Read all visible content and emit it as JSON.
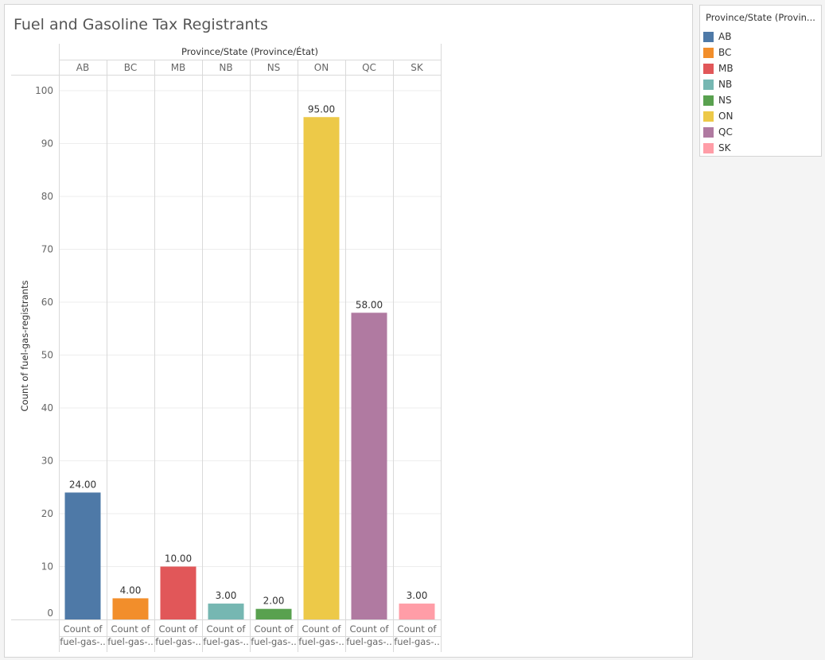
{
  "chart_data": {
    "type": "bar",
    "title": "Fuel and Gasoline Tax Registrants",
    "column_header": "Province/State (Province/État)",
    "ylabel": "Count of fuel-gas-registrants",
    "ylim": [
      0,
      100
    ],
    "yticks": [
      0,
      10,
      20,
      30,
      40,
      50,
      60,
      70,
      80,
      90,
      100
    ],
    "categories": [
      "AB",
      "BC",
      "MB",
      "NB",
      "NS",
      "ON",
      "QC",
      "SK"
    ],
    "values": [
      24,
      4,
      10,
      3,
      2,
      95,
      58,
      3
    ],
    "value_labels": [
      "24.00",
      "4.00",
      "10.00",
      "3.00",
      "2.00",
      "95.00",
      "58.00",
      "3.00"
    ],
    "colors": [
      "#4e79a7",
      "#f28e2b",
      "#e15759",
      "#76b7b2",
      "#59a14f",
      "#edc948",
      "#b07aa1",
      "#ff9da7"
    ],
    "bottom_label_line1": "Count of",
    "bottom_label_line2": "fuel-gas-..",
    "grid": true
  },
  "legend": {
    "title": "Province/State (Provin...",
    "items": [
      {
        "label": "AB",
        "color": "#4e79a7"
      },
      {
        "label": "BC",
        "color": "#f28e2b"
      },
      {
        "label": "MB",
        "color": "#e15759"
      },
      {
        "label": "NB",
        "color": "#76b7b2"
      },
      {
        "label": "NS",
        "color": "#59a14f"
      },
      {
        "label": "ON",
        "color": "#edc948"
      },
      {
        "label": "QC",
        "color": "#b07aa1"
      },
      {
        "label": "SK",
        "color": "#ff9da7"
      }
    ]
  }
}
